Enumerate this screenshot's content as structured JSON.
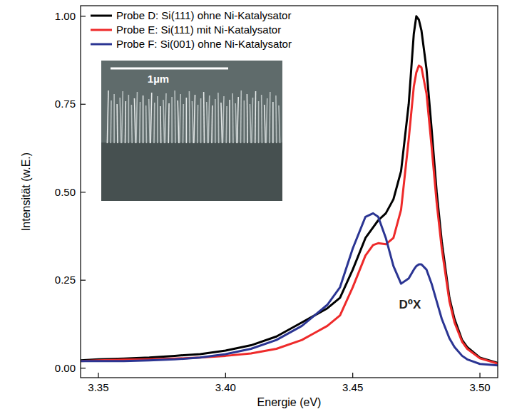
{
  "chart_data": {
    "type": "line",
    "x_label": "Energie (eV)",
    "y_label": "Intensität (w.E.)",
    "x": [
      3.343,
      3.35,
      3.36,
      3.37,
      3.38,
      3.39,
      3.4,
      3.41,
      3.42,
      3.43,
      3.435,
      3.44,
      3.445,
      3.45,
      3.455,
      3.458,
      3.46,
      3.463,
      3.466,
      3.469,
      3.472,
      3.474,
      3.475,
      3.476,
      3.477,
      3.479,
      3.481,
      3.483,
      3.485,
      3.488,
      3.49,
      3.493,
      3.495,
      3.5,
      3.507
    ],
    "series": [
      {
        "name": "Probe D: Si(111) ohne Ni-Katalysator",
        "color": "#000000",
        "values": [
          0.022,
          0.025,
          0.027,
          0.03,
          0.035,
          0.04,
          0.05,
          0.065,
          0.09,
          0.13,
          0.15,
          0.17,
          0.2,
          0.28,
          0.37,
          0.4,
          0.42,
          0.44,
          0.48,
          0.56,
          0.75,
          0.95,
          1.0,
          0.99,
          0.96,
          0.85,
          0.68,
          0.5,
          0.36,
          0.2,
          0.14,
          0.08,
          0.06,
          0.03,
          0.015
        ]
      },
      {
        "name": "Probe E: Si(111) mit Ni-Katalysator",
        "color": "#ee2a2a",
        "values": [
          0.02,
          0.022,
          0.024,
          0.025,
          0.027,
          0.03,
          0.035,
          0.042,
          0.055,
          0.08,
          0.1,
          0.12,
          0.15,
          0.23,
          0.32,
          0.35,
          0.355,
          0.352,
          0.37,
          0.45,
          0.65,
          0.8,
          0.84,
          0.86,
          0.855,
          0.78,
          0.63,
          0.47,
          0.34,
          0.19,
          0.13,
          0.075,
          0.055,
          0.028,
          0.013
        ]
      },
      {
        "name": "Probe F: Si(001) ohne Ni-Katalysator",
        "color": "#2b3593",
        "values": [
          0.02,
          0.02,
          0.02,
          0.022,
          0.025,
          0.03,
          0.04,
          0.055,
          0.08,
          0.12,
          0.15,
          0.18,
          0.23,
          0.34,
          0.43,
          0.44,
          0.43,
          0.37,
          0.29,
          0.24,
          0.255,
          0.28,
          0.29,
          0.295,
          0.295,
          0.28,
          0.24,
          0.19,
          0.14,
          0.085,
          0.06,
          0.035,
          0.025,
          0.012,
          0.008
        ]
      }
    ],
    "xlim": [
      3.343,
      3.507
    ],
    "ylim": [
      -0.027,
      1.03
    ],
    "xticks": [
      3.35,
      {
        "value": 3.4,
        "label": "3.40"
      },
      3.45,
      {
        "value": 3.5,
        "label": "3.50"
      }
    ],
    "yticks": [
      {
        "value": 0,
        "label": "0.00"
      },
      0.25,
      {
        "value": 0.5,
        "label": "0.50"
      },
      0.75,
      {
        "value": 1,
        "label": "1.00"
      }
    ],
    "grid": false,
    "legend": "upper left",
    "annotations": [
      {
        "text": "D⁰X",
        "x": 3.4725,
        "y": 0.17
      }
    ],
    "inset": {
      "label": "1µm"
    }
  }
}
